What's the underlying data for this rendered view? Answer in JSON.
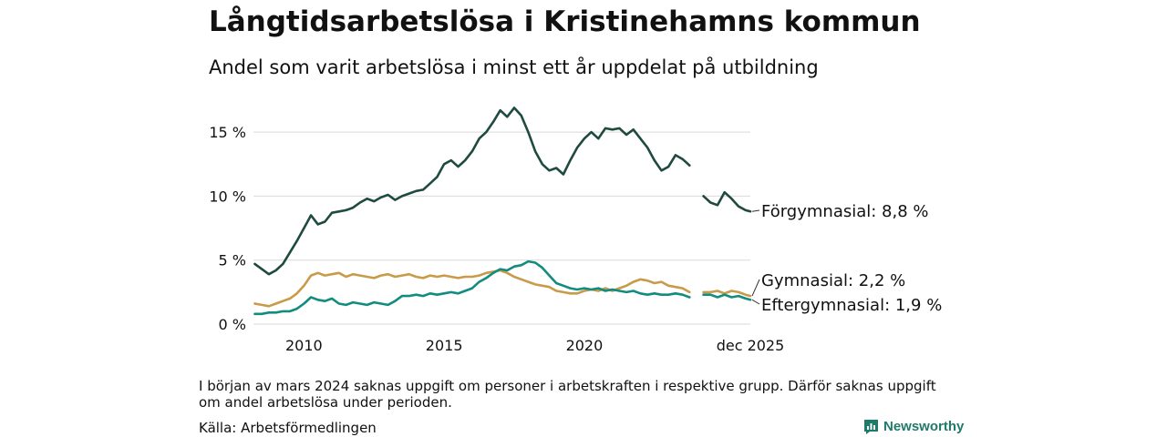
{
  "header": {
    "title": "Långtidsarbetslösa i Kristinehamns kommun",
    "subtitle": "Andel som varit arbetslösa i minst ett år uppdelat på utbildning"
  },
  "footer": {
    "note": "I början av mars 2024 saknas uppgift om personer i arbetskraften i respektive grupp. Därför saknas uppgift om andel arbetslösa under perioden.",
    "source": "Källa: Arbetsförmedlingen",
    "brand": "Newsworthy"
  },
  "chart_data": {
    "type": "line",
    "title": "Långtidsarbetslösa i Kristinehamns kommun",
    "subtitle": "Andel som varit arbetslösa i minst ett år uppdelat på utbildning",
    "xlabel": "",
    "ylabel": "",
    "xlim": [
      2008.2,
      2025.92
    ],
    "ylim": [
      0,
      17.5
    ],
    "y_ticks": [
      0,
      5,
      10,
      15
    ],
    "y_tick_labels": [
      "0 %",
      "5 %",
      "10 %",
      "15 %"
    ],
    "x_ticks": [
      2010,
      2015,
      2020,
      2025.92
    ],
    "x_tick_labels": [
      "2010",
      "2015",
      "2020",
      "dec 2025"
    ],
    "grid": true,
    "gap": [
      2023.8,
      2024.25
    ],
    "colors": {
      "Förgymnasial": "#1f4a40",
      "Gymnasial": "#c99a47",
      "Eftergymnasial": "#128c7e",
      "grid": "#d9d9d9"
    },
    "series": [
      {
        "name": "Förgymnasial",
        "end_label": "Förgymnasial: 8,8 %",
        "x": [
          2008.25,
          2008.5,
          2008.75,
          2009.0,
          2009.25,
          2009.5,
          2009.75,
          2010.0,
          2010.25,
          2010.5,
          2010.75,
          2011.0,
          2011.25,
          2011.5,
          2011.75,
          2012.0,
          2012.25,
          2012.5,
          2012.75,
          2013.0,
          2013.25,
          2013.5,
          2013.75,
          2014.0,
          2014.25,
          2014.5,
          2014.75,
          2015.0,
          2015.25,
          2015.5,
          2015.75,
          2016.0,
          2016.25,
          2016.5,
          2016.75,
          2017.0,
          2017.25,
          2017.5,
          2017.75,
          2018.0,
          2018.25,
          2018.5,
          2018.75,
          2019.0,
          2019.25,
          2019.5,
          2019.75,
          2020.0,
          2020.25,
          2020.5,
          2020.75,
          2021.0,
          2021.25,
          2021.5,
          2021.75,
          2022.0,
          2022.25,
          2022.5,
          2022.75,
          2023.0,
          2023.25,
          2023.5,
          2023.75,
          2024.25,
          2024.5,
          2024.75,
          2025.0,
          2025.25,
          2025.5,
          2025.75,
          2025.92
        ],
        "values": [
          4.7,
          4.3,
          3.9,
          4.2,
          4.7,
          5.6,
          6.5,
          7.5,
          8.5,
          7.8,
          8.0,
          8.7,
          8.8,
          8.9,
          9.1,
          9.5,
          9.8,
          9.6,
          9.9,
          10.1,
          9.7,
          10.0,
          10.2,
          10.4,
          10.5,
          11.0,
          11.5,
          12.5,
          12.8,
          12.3,
          12.8,
          13.5,
          14.5,
          15.0,
          15.8,
          16.7,
          16.2,
          16.9,
          16.3,
          15.0,
          13.5,
          12.5,
          12.0,
          12.2,
          11.7,
          12.8,
          13.8,
          14.5,
          15.0,
          14.5,
          15.3,
          15.2,
          15.3,
          14.8,
          15.2,
          14.5,
          13.8,
          12.8,
          12.0,
          12.3,
          13.2,
          12.9,
          12.4,
          10.0,
          9.5,
          9.3,
          10.3,
          9.8,
          9.2,
          8.9,
          8.8
        ]
      },
      {
        "name": "Gymnasial",
        "end_label": "Gymnasial: 2,2 %",
        "x": [
          2008.25,
          2008.5,
          2008.75,
          2009.0,
          2009.25,
          2009.5,
          2009.75,
          2010.0,
          2010.25,
          2010.5,
          2010.75,
          2011.0,
          2011.25,
          2011.5,
          2011.75,
          2012.0,
          2012.25,
          2012.5,
          2012.75,
          2013.0,
          2013.25,
          2013.5,
          2013.75,
          2014.0,
          2014.25,
          2014.5,
          2014.75,
          2015.0,
          2015.25,
          2015.5,
          2015.75,
          2016.0,
          2016.25,
          2016.5,
          2016.75,
          2017.0,
          2017.25,
          2017.5,
          2017.75,
          2018.0,
          2018.25,
          2018.5,
          2018.75,
          2019.0,
          2019.25,
          2019.5,
          2019.75,
          2020.0,
          2020.25,
          2020.5,
          2020.75,
          2021.0,
          2021.25,
          2021.5,
          2021.75,
          2022.0,
          2022.25,
          2022.5,
          2022.75,
          2023.0,
          2023.25,
          2023.5,
          2023.75,
          2024.25,
          2024.5,
          2024.75,
          2025.0,
          2025.25,
          2025.5,
          2025.75,
          2025.92
        ],
        "values": [
          1.6,
          1.5,
          1.4,
          1.6,
          1.8,
          2.0,
          2.4,
          3.0,
          3.8,
          4.0,
          3.8,
          3.9,
          4.0,
          3.7,
          3.9,
          3.8,
          3.7,
          3.6,
          3.8,
          3.9,
          3.7,
          3.8,
          3.9,
          3.7,
          3.6,
          3.8,
          3.7,
          3.8,
          3.7,
          3.6,
          3.7,
          3.7,
          3.8,
          4.0,
          4.1,
          4.2,
          4.0,
          3.7,
          3.5,
          3.3,
          3.1,
          3.0,
          2.9,
          2.6,
          2.5,
          2.4,
          2.4,
          2.6,
          2.7,
          2.6,
          2.8,
          2.6,
          2.8,
          3.0,
          3.3,
          3.5,
          3.4,
          3.2,
          3.3,
          3.0,
          2.9,
          2.8,
          2.5,
          2.5,
          2.5,
          2.6,
          2.4,
          2.6,
          2.5,
          2.3,
          2.2
        ]
      },
      {
        "name": "Eftergymnasial",
        "end_label": "Eftergymnasial: 1,9 %",
        "x": [
          2008.25,
          2008.5,
          2008.75,
          2009.0,
          2009.25,
          2009.5,
          2009.75,
          2010.0,
          2010.25,
          2010.5,
          2010.75,
          2011.0,
          2011.25,
          2011.5,
          2011.75,
          2012.0,
          2012.25,
          2012.5,
          2012.75,
          2013.0,
          2013.25,
          2013.5,
          2013.75,
          2014.0,
          2014.25,
          2014.5,
          2014.75,
          2015.0,
          2015.25,
          2015.5,
          2015.75,
          2016.0,
          2016.25,
          2016.5,
          2016.75,
          2017.0,
          2017.25,
          2017.5,
          2017.75,
          2018.0,
          2018.25,
          2018.5,
          2018.75,
          2019.0,
          2019.25,
          2019.5,
          2019.75,
          2020.0,
          2020.25,
          2020.5,
          2020.75,
          2021.0,
          2021.25,
          2021.5,
          2021.75,
          2022.0,
          2022.25,
          2022.5,
          2022.75,
          2023.0,
          2023.25,
          2023.5,
          2023.75,
          2024.25,
          2024.5,
          2024.75,
          2025.0,
          2025.25,
          2025.5,
          2025.75,
          2025.92
        ],
        "values": [
          0.8,
          0.8,
          0.9,
          0.9,
          1.0,
          1.0,
          1.2,
          1.6,
          2.1,
          1.9,
          1.8,
          2.0,
          1.6,
          1.5,
          1.7,
          1.6,
          1.5,
          1.7,
          1.6,
          1.5,
          1.8,
          2.2,
          2.2,
          2.3,
          2.2,
          2.4,
          2.3,
          2.4,
          2.5,
          2.4,
          2.6,
          2.8,
          3.3,
          3.6,
          4.0,
          4.3,
          4.2,
          4.5,
          4.6,
          4.9,
          4.8,
          4.4,
          3.8,
          3.2,
          3.0,
          2.8,
          2.7,
          2.8,
          2.7,
          2.8,
          2.6,
          2.7,
          2.6,
          2.5,
          2.6,
          2.4,
          2.3,
          2.4,
          2.3,
          2.3,
          2.4,
          2.3,
          2.1,
          2.3,
          2.3,
          2.1,
          2.3,
          2.1,
          2.2,
          2.0,
          1.9
        ]
      }
    ]
  }
}
